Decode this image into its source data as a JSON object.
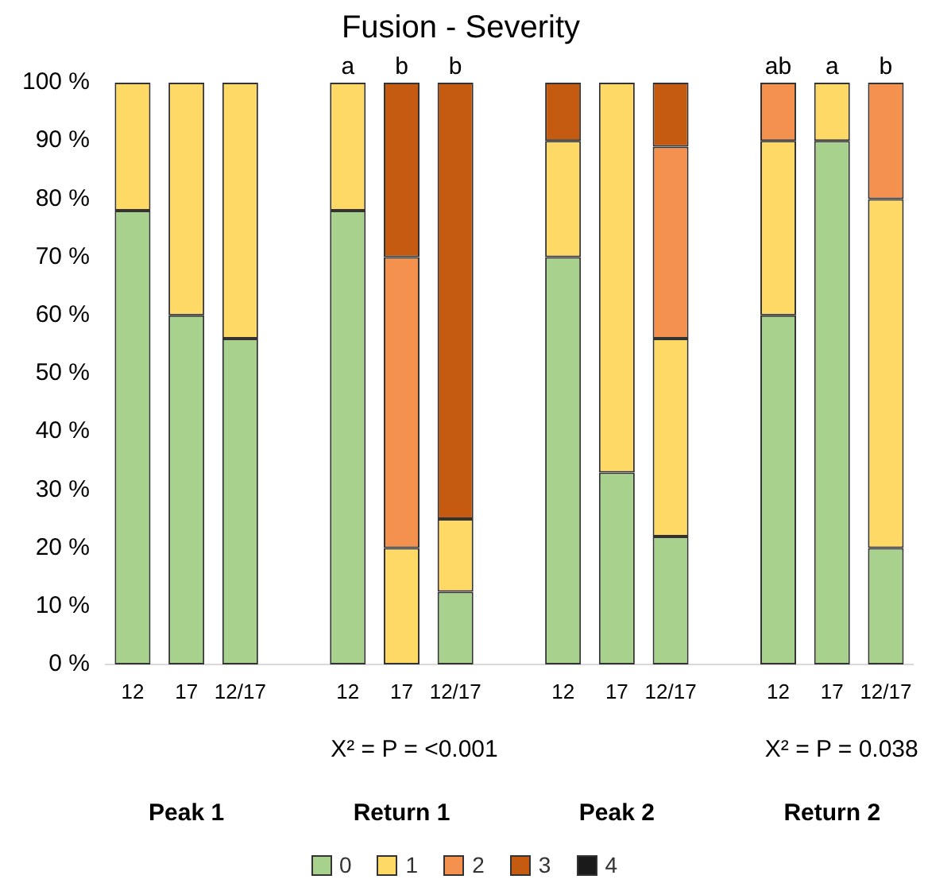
{
  "chart_data": {
    "type": "bar",
    "title": "Fusion - Severity",
    "stacked": true,
    "categories": [
      "12",
      "17",
      "12/17",
      null,
      "12",
      "17",
      "12/17",
      null,
      "12",
      "17",
      "12/17",
      null,
      "12",
      "17",
      "12/17"
    ],
    "series": [
      {
        "name": "0",
        "color": "#a9d18e",
        "values": [
          78,
          60,
          56,
          null,
          78,
          0,
          12.5,
          null,
          70,
          33,
          22,
          null,
          60,
          90,
          20
        ]
      },
      {
        "name": "1",
        "color": "#ffd966",
        "values": [
          22,
          40,
          44,
          null,
          22,
          20,
          12.5,
          null,
          20,
          67,
          34,
          null,
          30,
          10,
          60
        ]
      },
      {
        "name": "2",
        "color": "#f4914e",
        "values": [
          0,
          0,
          0,
          null,
          0,
          50,
          0,
          null,
          0,
          0,
          33,
          null,
          10,
          0,
          20
        ]
      },
      {
        "name": "3",
        "color": "#c55a11",
        "values": [
          0,
          0,
          0,
          null,
          0,
          30,
          75,
          null,
          10,
          0,
          11,
          null,
          0,
          0,
          0
        ]
      },
      {
        "name": "4",
        "color": "#1a1a1a",
        "values": [
          0,
          0,
          0,
          null,
          0,
          0,
          0,
          null,
          0,
          0,
          0,
          null,
          0,
          0,
          0
        ]
      }
    ],
    "ylim": [
      0,
      100
    ],
    "yticks": [
      {
        "value": 0,
        "label": "0 %"
      },
      {
        "value": 10,
        "label": "10 %"
      },
      {
        "value": 20,
        "label": "20 %"
      },
      {
        "value": 30,
        "label": "30 %"
      },
      {
        "value": 40,
        "label": "40 %"
      },
      {
        "value": 50,
        "label": "50 %"
      },
      {
        "value": 60,
        "label": "60 %"
      },
      {
        "value": 70,
        "label": "70 %"
      },
      {
        "value": 80,
        "label": "80 %"
      },
      {
        "value": 90,
        "label": "90 %"
      },
      {
        "value": 100,
        "label": "100 %"
      }
    ],
    "grid": false,
    "legend": "bottom",
    "annotations": [
      {
        "text": "a",
        "y": 100
      },
      {
        "text": "b",
        "y": 100
      },
      {
        "text": "b",
        "y": 100
      },
      {
        "text": "ab",
        "y": 100
      },
      {
        "text": "a",
        "y": 100
      },
      {
        "text": "b",
        "y": 100
      },
      "X² = P = <0.001",
      "X² = P = 0.038",
      "Peak 1",
      "Return 1",
      "Peak 2",
      "Return 2"
    ]
  }
}
